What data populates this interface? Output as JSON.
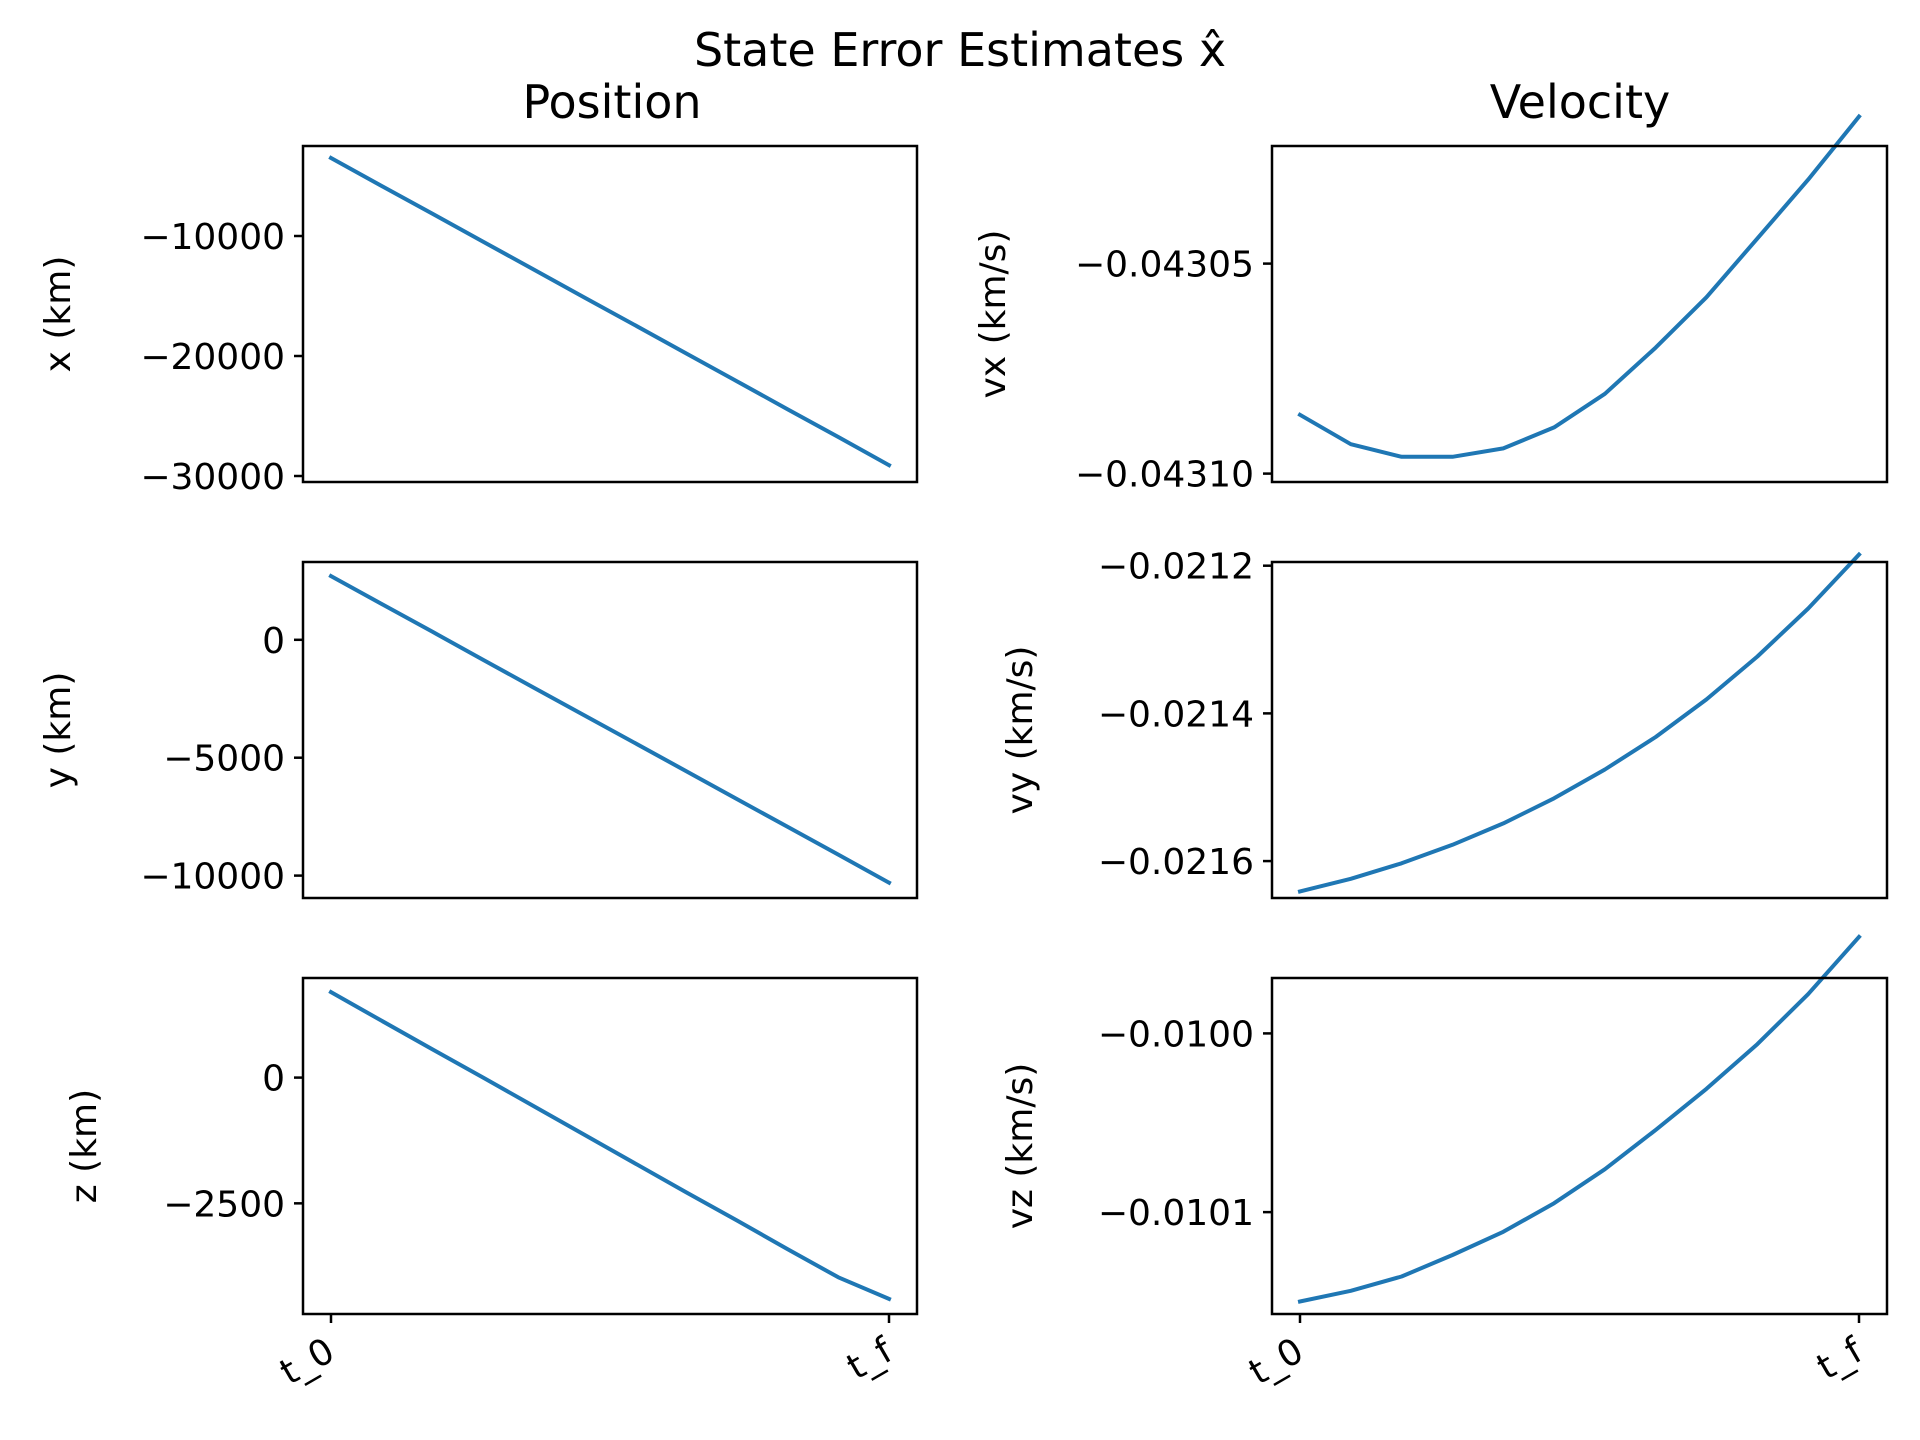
{
  "figure": {
    "title": "State Error Estimates x̂",
    "column_titles": [
      "Position",
      "Velocity"
    ],
    "x_tick_labels": [
      "t_0",
      "t_f"
    ]
  },
  "colors": {
    "line": "#1f77b4",
    "axes": "#000000",
    "background": "#ffffff"
  },
  "chart_data": [
    {
      "type": "line",
      "ylabel": "x (km)",
      "x": [
        0,
        1,
        2,
        3,
        4,
        5,
        6,
        7,
        8,
        9,
        10,
        11
      ],
      "ylim": [
        -30500,
        -2500
      ],
      "yticks": [
        -10000,
        -20000,
        -30000
      ],
      "ytick_labels": [
        "−10000",
        "−20000",
        "−30000"
      ],
      "series": [
        {
          "values": [
            -3500,
            -5830,
            -8150,
            -10480,
            -12800,
            -15130,
            -17450,
            -19780,
            -22100,
            -24430,
            -26750,
            -29100
          ]
        }
      ]
    },
    {
      "type": "line",
      "ylabel": "vx (km/s)",
      "x": [
        0,
        1,
        2,
        3,
        4,
        5,
        6,
        7,
        8,
        9,
        10,
        11
      ],
      "ylim": [
        -0.043102,
        -0.043022
      ],
      "yticks": [
        -0.04305,
        -0.0431
      ],
      "ytick_labels": [
        "−0.04305",
        "−0.04310"
      ],
      "series": [
        {
          "values": [
            -0.043086,
            -0.043093,
            -0.043096,
            -0.043096,
            -0.043094,
            -0.043089,
            -0.043081,
            -0.04307,
            -0.043058,
            -0.043044,
            -0.04303,
            -0.043015
          ]
        }
      ]
    },
    {
      "type": "line",
      "ylabel": "y (km)",
      "x": [
        0,
        1,
        2,
        3,
        4,
        5,
        6,
        7,
        8,
        9,
        10,
        11
      ],
      "ylim": [
        -10950,
        3300
      ],
      "yticks": [
        0,
        -5000,
        -10000
      ],
      "ytick_labels": [
        "0",
        "−5000",
        "−10000"
      ],
      "series": [
        {
          "values": [
            2700,
            1520,
            340,
            -850,
            -2030,
            -3210,
            -4390,
            -5570,
            -6750,
            -7930,
            -9110,
            -10300
          ]
        }
      ]
    },
    {
      "type": "line",
      "ylabel": "vy (km/s)",
      "x": [
        0,
        1,
        2,
        3,
        4,
        5,
        6,
        7,
        8,
        9,
        10,
        11
      ],
      "ylim": [
        -0.02165,
        -0.021195
      ],
      "yticks": [
        -0.0212,
        -0.0214,
        -0.0216
      ],
      "ytick_labels": [
        "−0.0212",
        "−0.0214",
        "−0.0216"
      ],
      "series": [
        {
          "values": [
            -0.021641,
            -0.021624,
            -0.021603,
            -0.021578,
            -0.021549,
            -0.021515,
            -0.021476,
            -0.021432,
            -0.021381,
            -0.021323,
            -0.021258,
            -0.021185
          ]
        }
      ]
    },
    {
      "type": "line",
      "ylabel": "z (km)",
      "x": [
        0,
        1,
        2,
        3,
        4,
        5,
        6,
        7,
        8,
        9,
        10,
        11
      ],
      "ylim": [
        -4700,
        1980
      ],
      "yticks": [
        0,
        -2500
      ],
      "ytick_labels": [
        "0",
        "−2500"
      ],
      "series": [
        {
          "values": [
            1700,
            1130,
            560,
            0,
            -570,
            -1140,
            -1710,
            -2280,
            -2840,
            -3410,
            -3970,
            -4400
          ]
        }
      ]
    },
    {
      "type": "line",
      "ylabel": "vz (km/s)",
      "x": [
        0,
        1,
        2,
        3,
        4,
        5,
        6,
        7,
        8,
        9,
        10,
        11
      ],
      "ylim": [
        -0.010157,
        -0.009969
      ],
      "yticks": [
        -0.01,
        -0.0101
      ],
      "ytick_labels": [
        "−0.0100",
        "−0.0101"
      ],
      "series": [
        {
          "values": [
            -0.01015,
            -0.010144,
            -0.010136,
            -0.010124,
            -0.010111,
            -0.010095,
            -0.010076,
            -0.010054,
            -0.010031,
            -0.010006,
            -0.009978,
            -0.009946
          ]
        }
      ]
    }
  ]
}
